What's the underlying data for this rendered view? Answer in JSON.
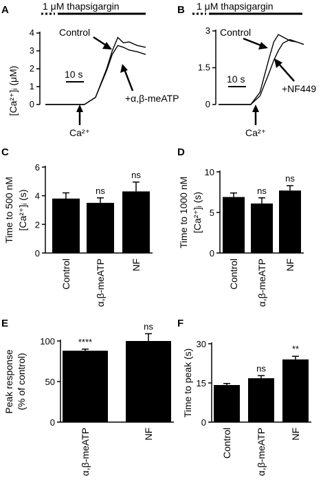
{
  "panels": {
    "A": {
      "label": "A",
      "drug_label": "1 μM thapsigargin",
      "ylabel": "[Ca²⁺]ᵢ (μM)",
      "scale_bar": "10 s",
      "addition_label": "Ca²⁺",
      "annotations": [
        "Control",
        "+α,β-meATP"
      ]
    },
    "B": {
      "label": "B",
      "drug_label": "1 μM thapsigargin",
      "scale_bar": "10 s",
      "addition_label": "Ca²⁺",
      "annotations": [
        "Control",
        "+NF449"
      ]
    },
    "C": {
      "label": "C"
    },
    "D": {
      "label": "D"
    },
    "E": {
      "label": "E"
    },
    "F": {
      "label": "F"
    }
  },
  "chart_data": [
    {
      "id": "A",
      "type": "line",
      "x_unit": "s",
      "ylim": [
        0,
        4
      ],
      "yticks": [
        0,
        1,
        2,
        3,
        4
      ],
      "series": [
        {
          "name": "Control",
          "x": [
            0,
            14,
            18,
            22,
            24,
            26,
            28,
            30,
            33,
            36
          ],
          "y": [
            0,
            0,
            0.4,
            2.0,
            3.0,
            3.75,
            3.45,
            3.5,
            3.3,
            3.2
          ]
        },
        {
          "name": "+α,β-meATP",
          "x": [
            0,
            14,
            18,
            22,
            24,
            26,
            28,
            30,
            33,
            36
          ],
          "y": [
            0,
            0,
            0.4,
            1.9,
            2.8,
            3.3,
            3.2,
            3.05,
            2.95,
            2.8
          ]
        }
      ]
    },
    {
      "id": "B",
      "type": "line",
      "x_unit": "s",
      "ylim": [
        0,
        3
      ],
      "yticks": [
        0,
        1.5,
        3
      ],
      "series": [
        {
          "name": "Control",
          "x": [
            0,
            14,
            18,
            22,
            24,
            26,
            28,
            31,
            34,
            37
          ],
          "y": [
            0,
            0,
            0.5,
            1.9,
            2.55,
            2.85,
            2.75,
            2.6,
            2.55,
            2.45
          ]
        },
        {
          "name": "+NF449",
          "x": [
            0,
            14,
            18,
            22,
            24,
            26,
            28,
            31,
            34,
            37
          ],
          "y": [
            0,
            0,
            0.35,
            1.3,
            1.8,
            2.2,
            2.5,
            2.65,
            2.55,
            2.45
          ]
        }
      ]
    },
    {
      "id": "C",
      "type": "bar",
      "ylabel": "Time to 500 nM [Ca²⁺]ᵢ (s)",
      "categories": [
        "Control",
        "α,β-meATP",
        "NF"
      ],
      "values": [
        3.8,
        3.5,
        4.3
      ],
      "errors": [
        0.4,
        0.35,
        0.65
      ],
      "significance": [
        "",
        "ns",
        "ns"
      ],
      "ylim": [
        0,
        6
      ],
      "yticks": [
        0,
        2,
        4,
        6
      ]
    },
    {
      "id": "D",
      "type": "bar",
      "ylabel": "Time to 1000 nM [Ca²⁺]ᵢ (s)",
      "categories": [
        "Control",
        "α,β-meATP",
        "NF"
      ],
      "values": [
        6.9,
        6.1,
        7.7
      ],
      "errors": [
        0.5,
        0.7,
        0.6
      ],
      "significance": [
        "",
        "ns",
        "ns"
      ],
      "ylim": [
        0,
        10
      ],
      "yticks": [
        0,
        5,
        10
      ]
    },
    {
      "id": "E",
      "type": "bar",
      "ylabel": "Peak response (% of control)",
      "categories": [
        "α,β-meATP",
        "NF"
      ],
      "values": [
        88,
        100
      ],
      "errors": [
        2,
        9
      ],
      "significance": [
        "****",
        "ns"
      ],
      "ylim": [
        0,
        100
      ],
      "yticks": [
        0,
        50,
        100
      ]
    },
    {
      "id": "F",
      "type": "bar",
      "ylabel": "Time to peak (s)",
      "categories": [
        "Control",
        "α,β-meATP",
        "NF"
      ],
      "values": [
        14.2,
        16.8,
        24.0
      ],
      "errors": [
        0.6,
        1.0,
        1.2
      ],
      "significance": [
        "",
        "ns",
        "**"
      ],
      "ylim": [
        0,
        30
      ],
      "yticks": [
        0,
        15,
        30
      ]
    }
  ]
}
